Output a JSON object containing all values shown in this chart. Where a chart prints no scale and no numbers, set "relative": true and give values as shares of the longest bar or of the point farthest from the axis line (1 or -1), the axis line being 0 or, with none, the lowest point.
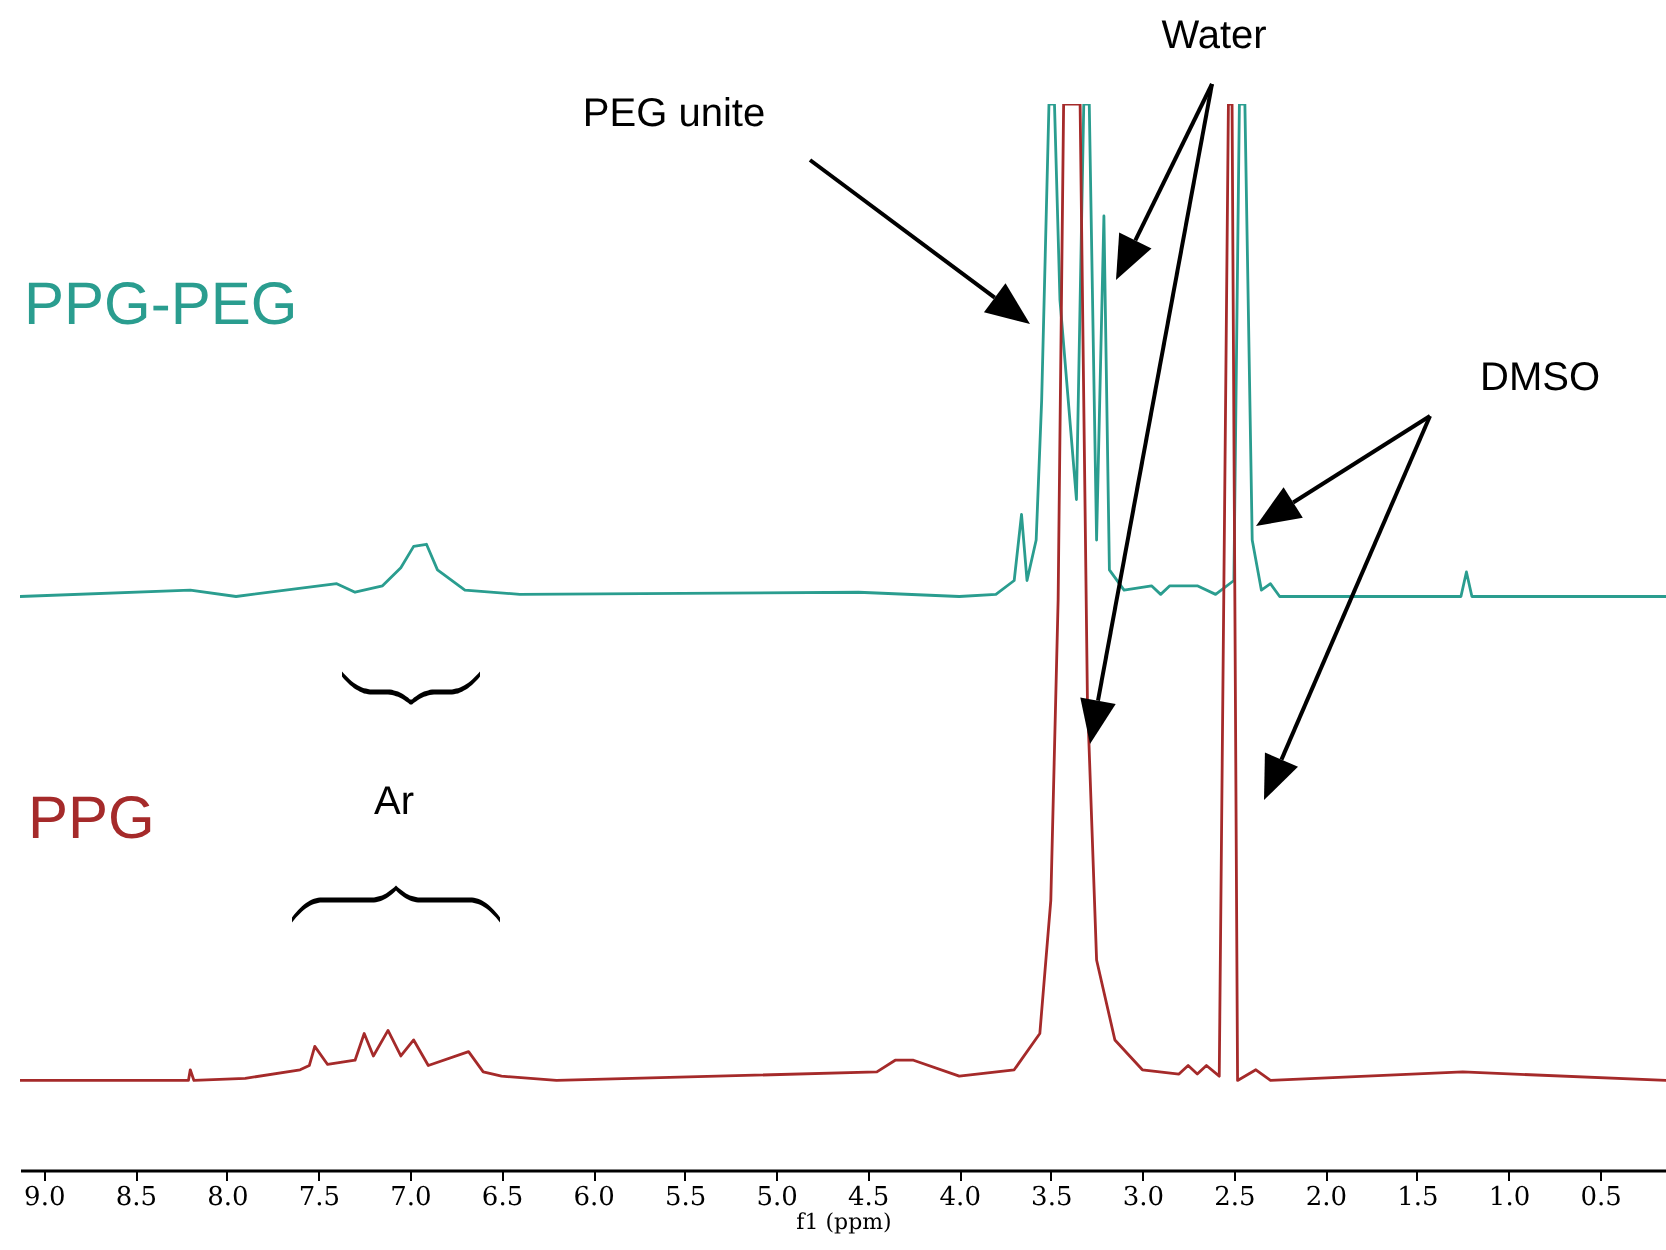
{
  "chart_data": {
    "type": "line",
    "relative": true,
    "xlabel": "f1 (ppm)",
    "annotations": [
      "PEG unite",
      "Water",
      "DMSO",
      "Ar"
    ],
    "xlim": [
      9.13,
      0.14
    ],
    "xticks": [
      {
        "value": 9,
        "label": "9.0"
      },
      {
        "value": 8.5,
        "label": "8.5"
      },
      {
        "value": 8,
        "label": "8.0"
      },
      {
        "value": 7.5,
        "label": "7.5"
      },
      {
        "value": 7,
        "label": "7.0"
      },
      {
        "value": 6.5,
        "label": "6.5"
      },
      {
        "value": 6,
        "label": "6.0"
      },
      {
        "value": 5.5,
        "label": "5.5"
      },
      {
        "value": 5,
        "label": "5.0"
      },
      {
        "value": 4.5,
        "label": "4.5"
      },
      {
        "value": 4,
        "label": "4.0"
      },
      {
        "value": 3.5,
        "label": "3.5"
      },
      {
        "value": 3,
        "label": "3.0"
      },
      {
        "value": 2.5,
        "label": "2.5"
      },
      {
        "value": 2,
        "label": "2.0"
      },
      {
        "value": 1.5,
        "label": "1.5"
      },
      {
        "value": 1,
        "label": "1.0"
      },
      {
        "value": 0.5,
        "label": "0.5"
      }
    ],
    "grid": false,
    "line_style": "solid",
    "marker": "none",
    "series": [
      {
        "name": "PPG-PEG",
        "color": "#2a9d8f",
        "x": [
          9.13,
          8.2,
          7.95,
          7.4,
          7.3,
          7.15,
          7.05,
          6.98,
          6.91,
          6.85,
          6.7,
          6.4,
          4.55,
          4.0,
          3.8,
          3.7,
          3.66,
          3.63,
          3.58,
          3.55,
          3.51,
          3.48,
          3.45,
          3.36,
          3.32,
          3.29,
          3.25,
          3.21,
          3.18,
          3.1,
          2.95,
          2.9,
          2.85,
          2.7,
          2.6,
          2.5,
          2.47,
          2.44,
          2.4,
          2.35,
          2.3,
          2.25,
          2.0,
          1.26,
          1.23,
          1.2,
          0.9,
          0.14
        ],
        "values": [
          0.538,
          0.544,
          0.538,
          0.55,
          0.542,
          0.548,
          0.565,
          0.585,
          0.587,
          0.563,
          0.544,
          0.54,
          0.542,
          0.538,
          0.54,
          0.553,
          0.615,
          0.553,
          0.591,
          0.722,
          1,
          1,
          0.816,
          0.629,
          1,
          1,
          0.591,
          0.895,
          0.563,
          0.544,
          0.548,
          0.54,
          0.548,
          0.548,
          0.54,
          0.553,
          1,
          1,
          0.591,
          0.544,
          0.55,
          0.538,
          0.538,
          0.538,
          0.561,
          0.538,
          0.538,
          0.538
        ]
      },
      {
        "name": "PPG",
        "color": "#a52a2a",
        "x": [
          9.13,
          8.21,
          8.2,
          8.18,
          7.9,
          7.6,
          7.55,
          7.52,
          7.45,
          7.3,
          7.25,
          7.2,
          7.12,
          7.05,
          6.98,
          6.9,
          6.68,
          6.6,
          6.5,
          6.2,
          4.45,
          4.35,
          4.25,
          4.0,
          3.7,
          3.56,
          3.5,
          3.46,
          3.43,
          3.38,
          3.34,
          3.3,
          3.25,
          3.15,
          3.0,
          2.8,
          2.75,
          2.7,
          2.65,
          2.58,
          2.53,
          2.51,
          2.48,
          2.38,
          2.3,
          1.25,
          0.14
        ],
        "values": [
          0.084,
          0.084,
          0.094,
          0.084,
          0.086,
          0.094,
          0.098,
          0.116,
          0.099,
          0.103,
          0.128,
          0.107,
          0.131,
          0.107,
          0.122,
          0.098,
          0.111,
          0.092,
          0.088,
          0.084,
          0.092,
          0.103,
          0.103,
          0.088,
          0.094,
          0.128,
          0.253,
          0.535,
          1,
          1,
          1,
          0.441,
          0.197,
          0.122,
          0.094,
          0.09,
          0.098,
          0.09,
          0.098,
          0.088,
          1,
          1,
          0.084,
          0.094,
          0.084,
          0.092,
          0.084
        ]
      }
    ]
  }
}
